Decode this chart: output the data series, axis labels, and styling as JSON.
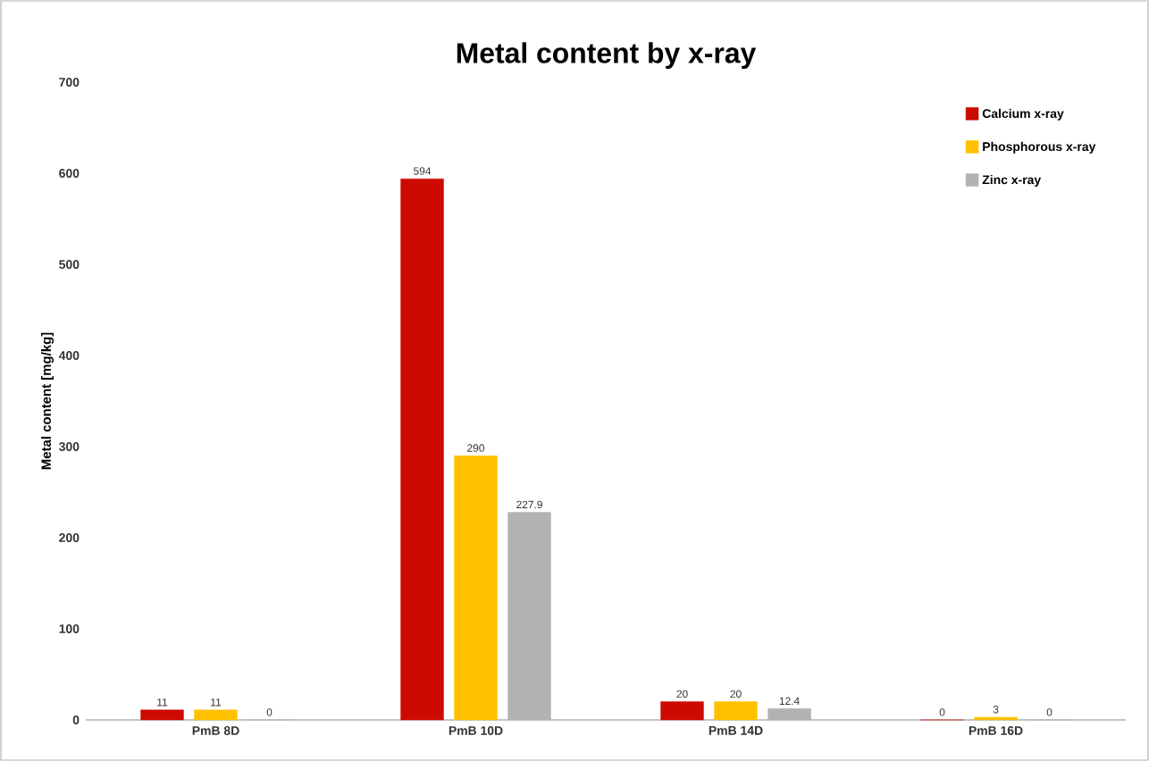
{
  "chart_data": {
    "type": "bar",
    "title": "Metal content by x-ray",
    "ylabel": "Metal content [mg/kg]",
    "categories": [
      "PmB 8D",
      "PmB 10D",
      "PmB 14D",
      "PmB 16D"
    ],
    "series": [
      {
        "name": "Calcium x-ray",
        "color": "#cc0a00",
        "values": [
          11,
          594,
          20,
          0
        ]
      },
      {
        "name": "Phosphorous x-ray",
        "color": "#ffc000",
        "values": [
          11,
          290,
          20,
          3
        ]
      },
      {
        "name": "Zinc x-ray",
        "color": "#b2b2b2",
        "values": [
          0,
          227.9,
          12.4,
          0
        ]
      }
    ],
    "ylim": [
      0,
      700
    ],
    "yticks": [
      0,
      100,
      200,
      300,
      400,
      500,
      600,
      700
    ],
    "data_labels": true,
    "legend": "top right",
    "grid": false
  }
}
